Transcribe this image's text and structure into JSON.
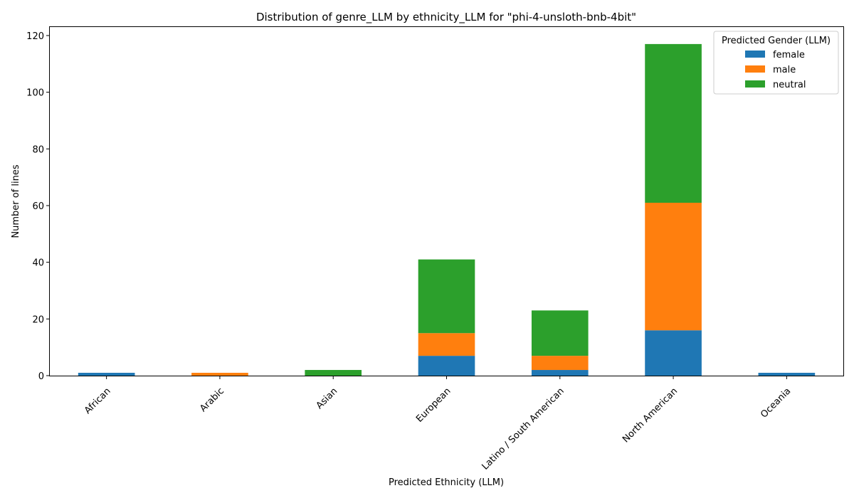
{
  "chart_data": {
    "type": "bar",
    "stacked": true,
    "title": "Distribution of genre_LLM by ethnicity_LLM for \"phi-4-unsloth-bnb-4bit\"",
    "xlabel": "Predicted Ethnicity (LLM)",
    "ylabel": "Number of lines",
    "ylim": [
      0,
      123
    ],
    "yticks": [
      0,
      20,
      40,
      60,
      80,
      100,
      120
    ],
    "grid": false,
    "legend_title": "Predicted Gender (LLM)",
    "legend_position": "top-right",
    "categories": [
      "African",
      "Arabic",
      "Asian",
      "European",
      "Latino / South American",
      "North American",
      "Oceania"
    ],
    "series": [
      {
        "name": "female",
        "color": "#1f77b4",
        "values": [
          1,
          0,
          0,
          7,
          2,
          16,
          1
        ]
      },
      {
        "name": "male",
        "color": "#ff7f0e",
        "values": [
          0,
          1,
          0,
          8,
          5,
          45,
          0
        ]
      },
      {
        "name": "neutral",
        "color": "#2ca02c",
        "values": [
          0,
          0,
          2,
          26,
          16,
          56,
          0
        ]
      }
    ]
  }
}
